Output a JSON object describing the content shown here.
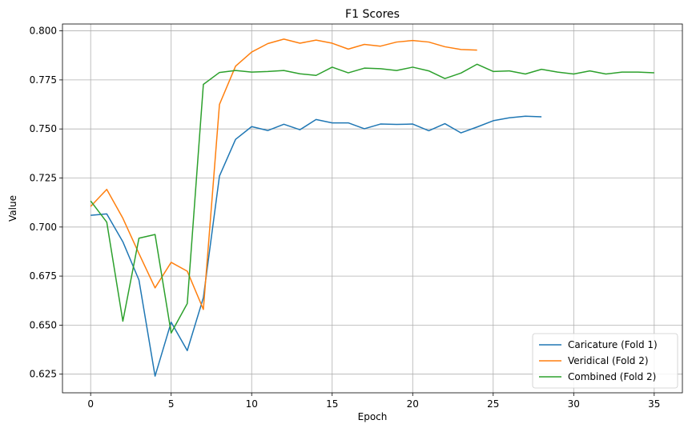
{
  "chart_data": {
    "type": "line",
    "title": "F1 Scores",
    "xlabel": "Epoch",
    "ylabel": "Value",
    "xlim": [
      -1.75,
      36.75
    ],
    "ylim": [
      0.6155,
      0.8035
    ],
    "xticks": [
      0,
      5,
      10,
      15,
      20,
      25,
      30,
      35
    ],
    "yticks": [
      0.625,
      0.65,
      0.675,
      0.7,
      0.725,
      0.75,
      0.775,
      0.8
    ],
    "grid": true,
    "legend_position": "bottom-right",
    "series": [
      {
        "name": "Caricature (Fold 1)",
        "color": "#1f77b4",
        "x": [
          0,
          1,
          2,
          3,
          4,
          5,
          6,
          7,
          8,
          9,
          10,
          11,
          12,
          13,
          14,
          15,
          16,
          17,
          18,
          19,
          20,
          21,
          22,
          23,
          24,
          25,
          26,
          27,
          28
        ],
        "values": [
          0.706,
          0.7067,
          0.6925,
          0.673,
          0.624,
          0.6515,
          0.637,
          0.664,
          0.726,
          0.7447,
          0.7512,
          0.7492,
          0.7524,
          0.7496,
          0.7548,
          0.7531,
          0.7531,
          0.7501,
          0.7525,
          0.7523,
          0.7525,
          0.7491,
          0.7527,
          0.748,
          0.751,
          0.7542,
          0.7557,
          0.7565,
          0.7562
        ]
      },
      {
        "name": "Veridical (Fold 2)",
        "color": "#ff7f0e",
        "x": [
          0,
          1,
          2,
          3,
          4,
          5,
          6,
          7,
          8,
          9,
          10,
          11,
          12,
          13,
          14,
          15,
          16,
          17,
          18,
          19,
          20,
          21,
          22,
          23,
          24
        ],
        "values": [
          0.7105,
          0.7192,
          0.7045,
          0.6865,
          0.669,
          0.682,
          0.6775,
          0.658,
          0.7625,
          0.782,
          0.7892,
          0.7935,
          0.7958,
          0.7937,
          0.7953,
          0.7937,
          0.7907,
          0.7931,
          0.7922,
          0.7943,
          0.7951,
          0.7943,
          0.7919,
          0.7905,
          0.7902
        ]
      },
      {
        "name": "Combined (Fold 2)",
        "color": "#2ca02c",
        "x": [
          0,
          1,
          2,
          3,
          4,
          5,
          6,
          7,
          8,
          9,
          10,
          11,
          12,
          13,
          14,
          15,
          16,
          17,
          18,
          19,
          20,
          21,
          22,
          23,
          24,
          25,
          26,
          27,
          28,
          29,
          30,
          31,
          32,
          33,
          34,
          35
        ],
        "values": [
          0.7133,
          0.7025,
          0.652,
          0.6943,
          0.6962,
          0.646,
          0.661,
          0.7727,
          0.7788,
          0.7798,
          0.779,
          0.7793,
          0.7798,
          0.7781,
          0.7773,
          0.7815,
          0.7786,
          0.781,
          0.7807,
          0.7798,
          0.7815,
          0.7796,
          0.7757,
          0.7785,
          0.783,
          0.7793,
          0.7796,
          0.778,
          0.7804,
          0.779,
          0.778,
          0.7796,
          0.778,
          0.779,
          0.779,
          0.7786
        ]
      }
    ]
  }
}
